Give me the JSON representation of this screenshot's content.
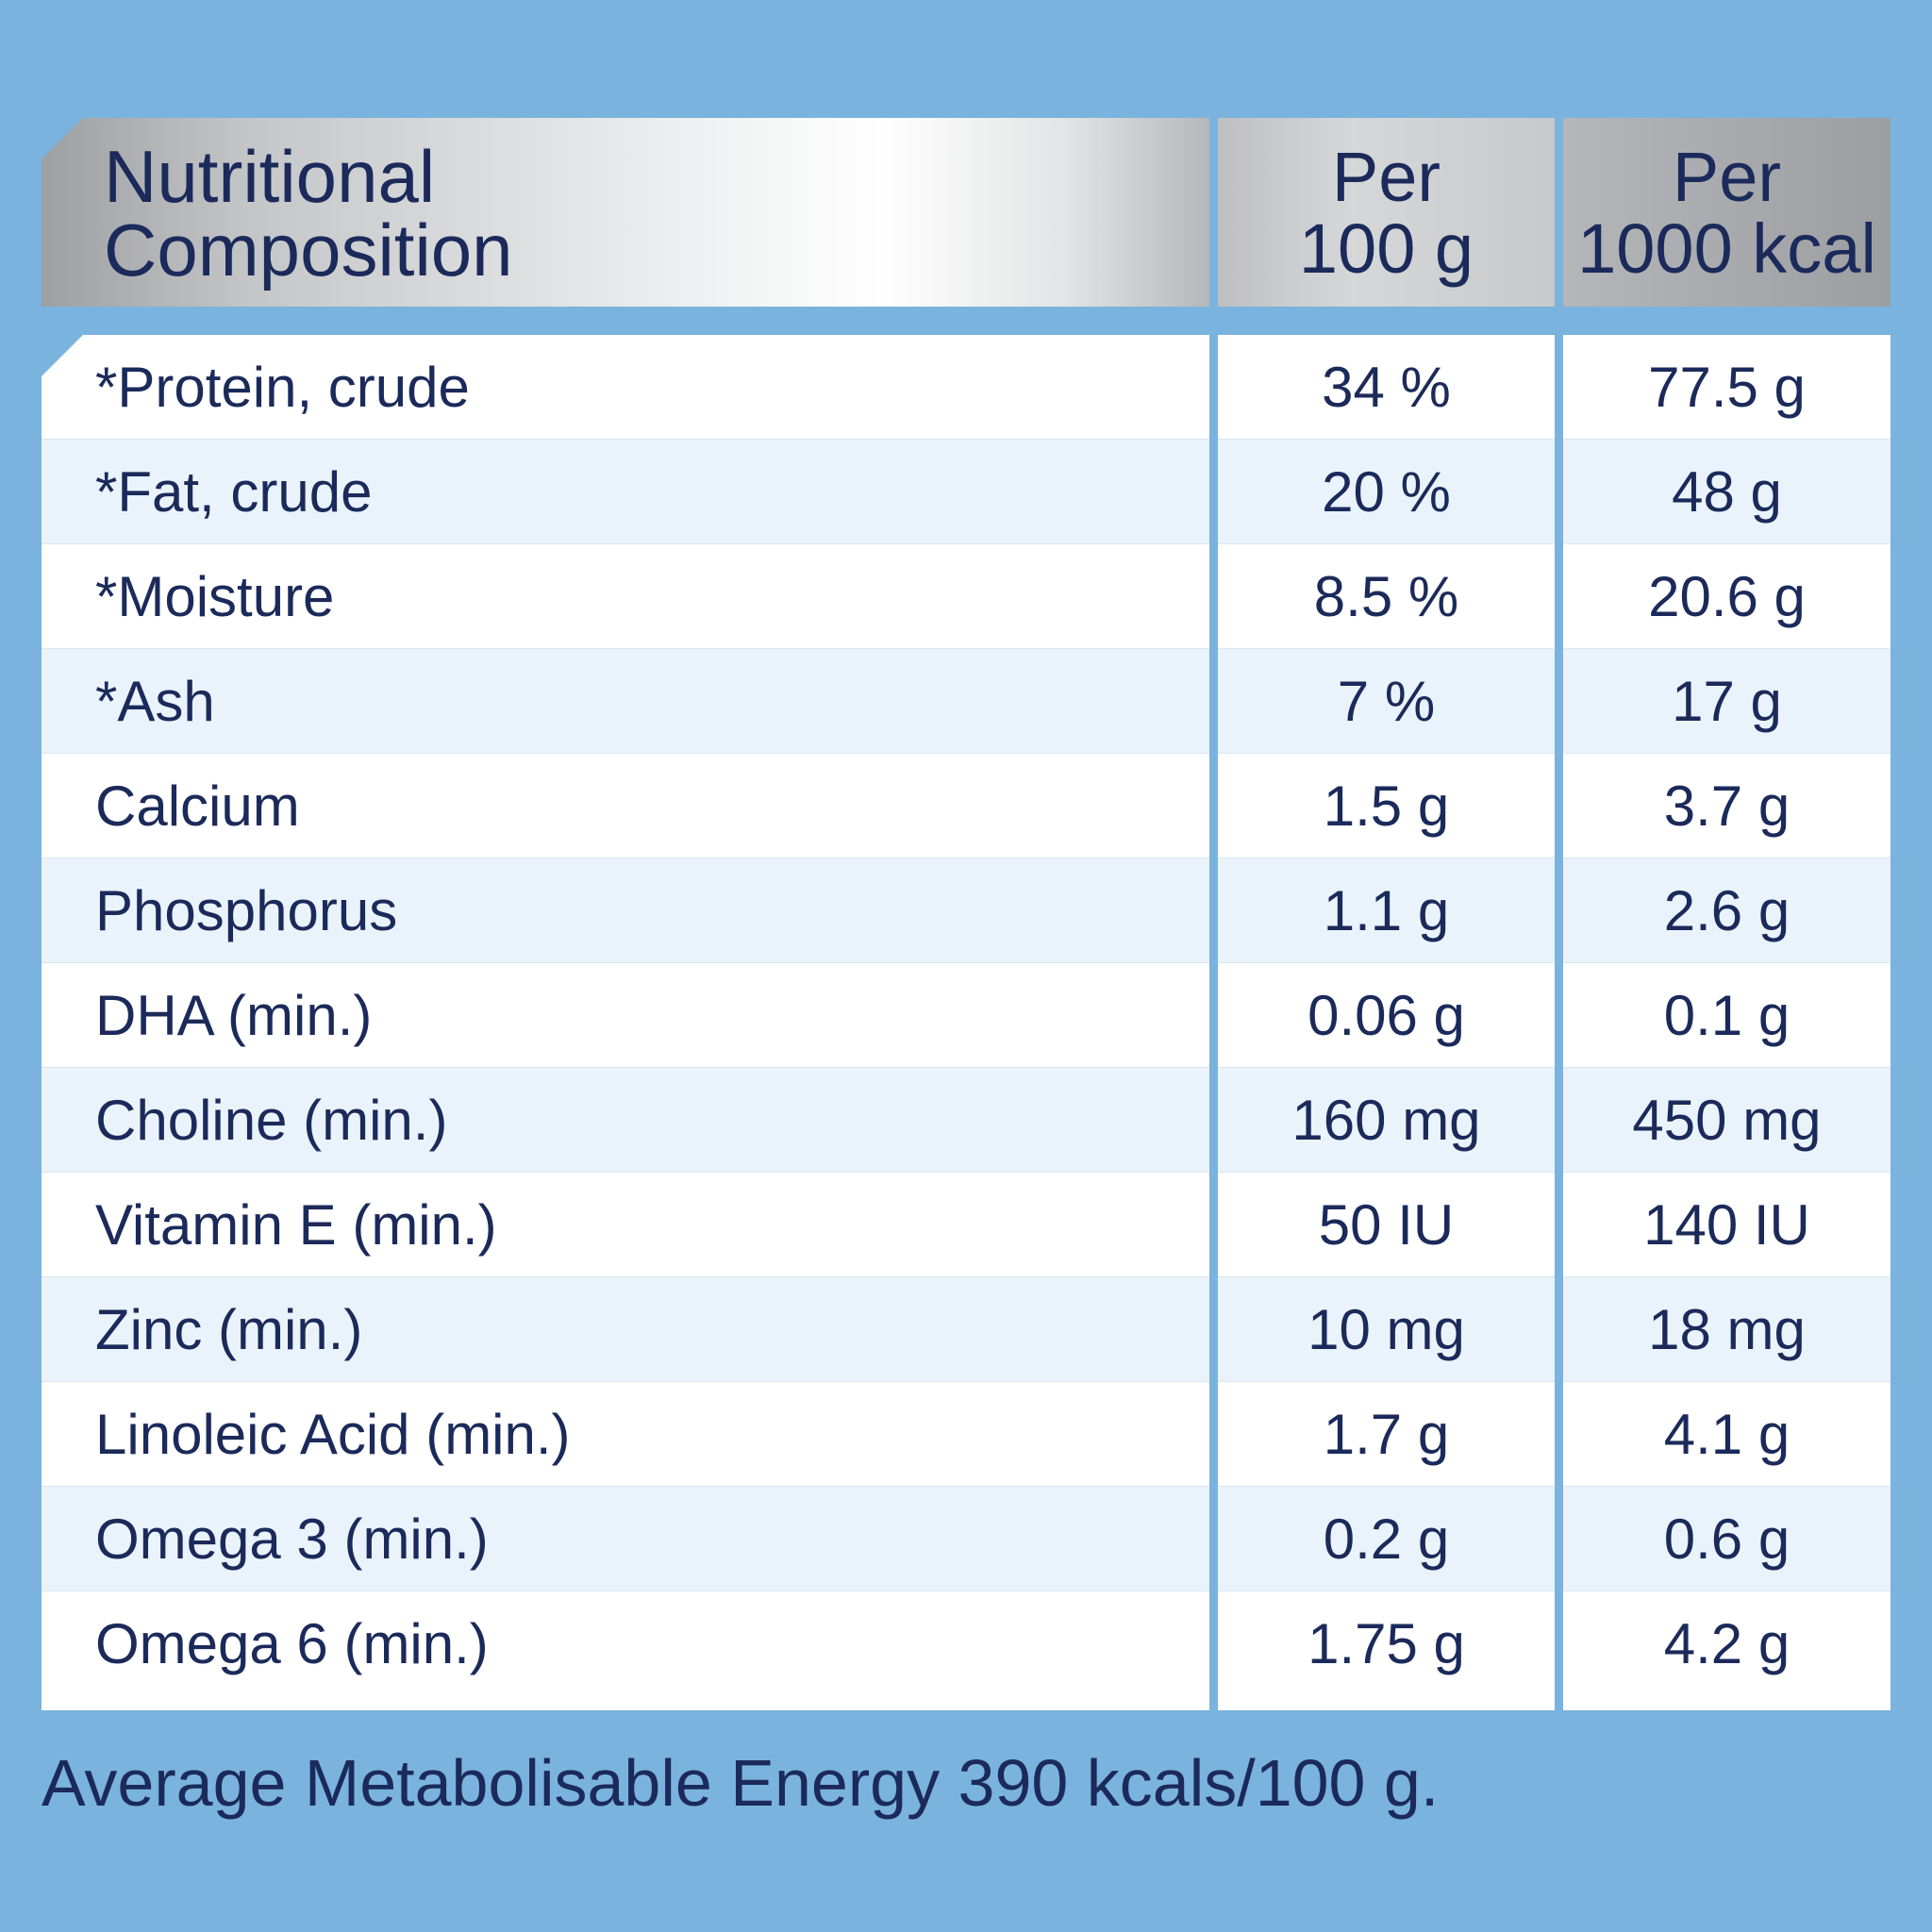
{
  "header": {
    "title_line1": "Nutritional",
    "title_line2": "Composition",
    "col1_line1": "Per",
    "col1_line2": "100 g",
    "col2_line1": "Per",
    "col2_line2": "1000 kcal"
  },
  "rows": [
    {
      "name": "*Protein, crude",
      "per100g": "34 %",
      "per1000kcal": "77.5 g"
    },
    {
      "name": "*Fat, crude",
      "per100g": "20 %",
      "per1000kcal": "48 g"
    },
    {
      "name": "*Moisture",
      "per100g": "8.5 %",
      "per1000kcal": "20.6 g"
    },
    {
      "name": "*Ash",
      "per100g": "7 %",
      "per1000kcal": "17 g"
    },
    {
      "name": "Calcium",
      "per100g": "1.5 g",
      "per1000kcal": "3.7 g"
    },
    {
      "name": "Phosphorus",
      "per100g": "1.1 g",
      "per1000kcal": "2.6 g"
    },
    {
      "name": "DHA (min.)",
      "per100g": "0.06 g",
      "per1000kcal": "0.1 g"
    },
    {
      "name": "Choline (min.)",
      "per100g": "160 mg",
      "per1000kcal": "450 mg"
    },
    {
      "name": "Vitamin E (min.)",
      "per100g": "50 IU",
      "per1000kcal": "140 IU"
    },
    {
      "name": "Zinc (min.)",
      "per100g": "10 mg",
      "per1000kcal": "18 mg"
    },
    {
      "name": "Linoleic Acid (min.)",
      "per100g": "1.7 g",
      "per1000kcal": "4.1 g"
    },
    {
      "name": "Omega 3 (min.)",
      "per100g": "0.2 g",
      "per1000kcal": "0.6 g"
    },
    {
      "name": "Omega 6 (min.)",
      "per100g": "1.75 g",
      "per1000kcal": "4.2 g"
    }
  ],
  "footer": "Average Metabolisable Energy 390 kcals/100 g.",
  "colors": {
    "background": "#7ab3de",
    "text": "#1b2a5a",
    "row_tint": "#eaf3fb",
    "row_white": "#ffffff"
  }
}
